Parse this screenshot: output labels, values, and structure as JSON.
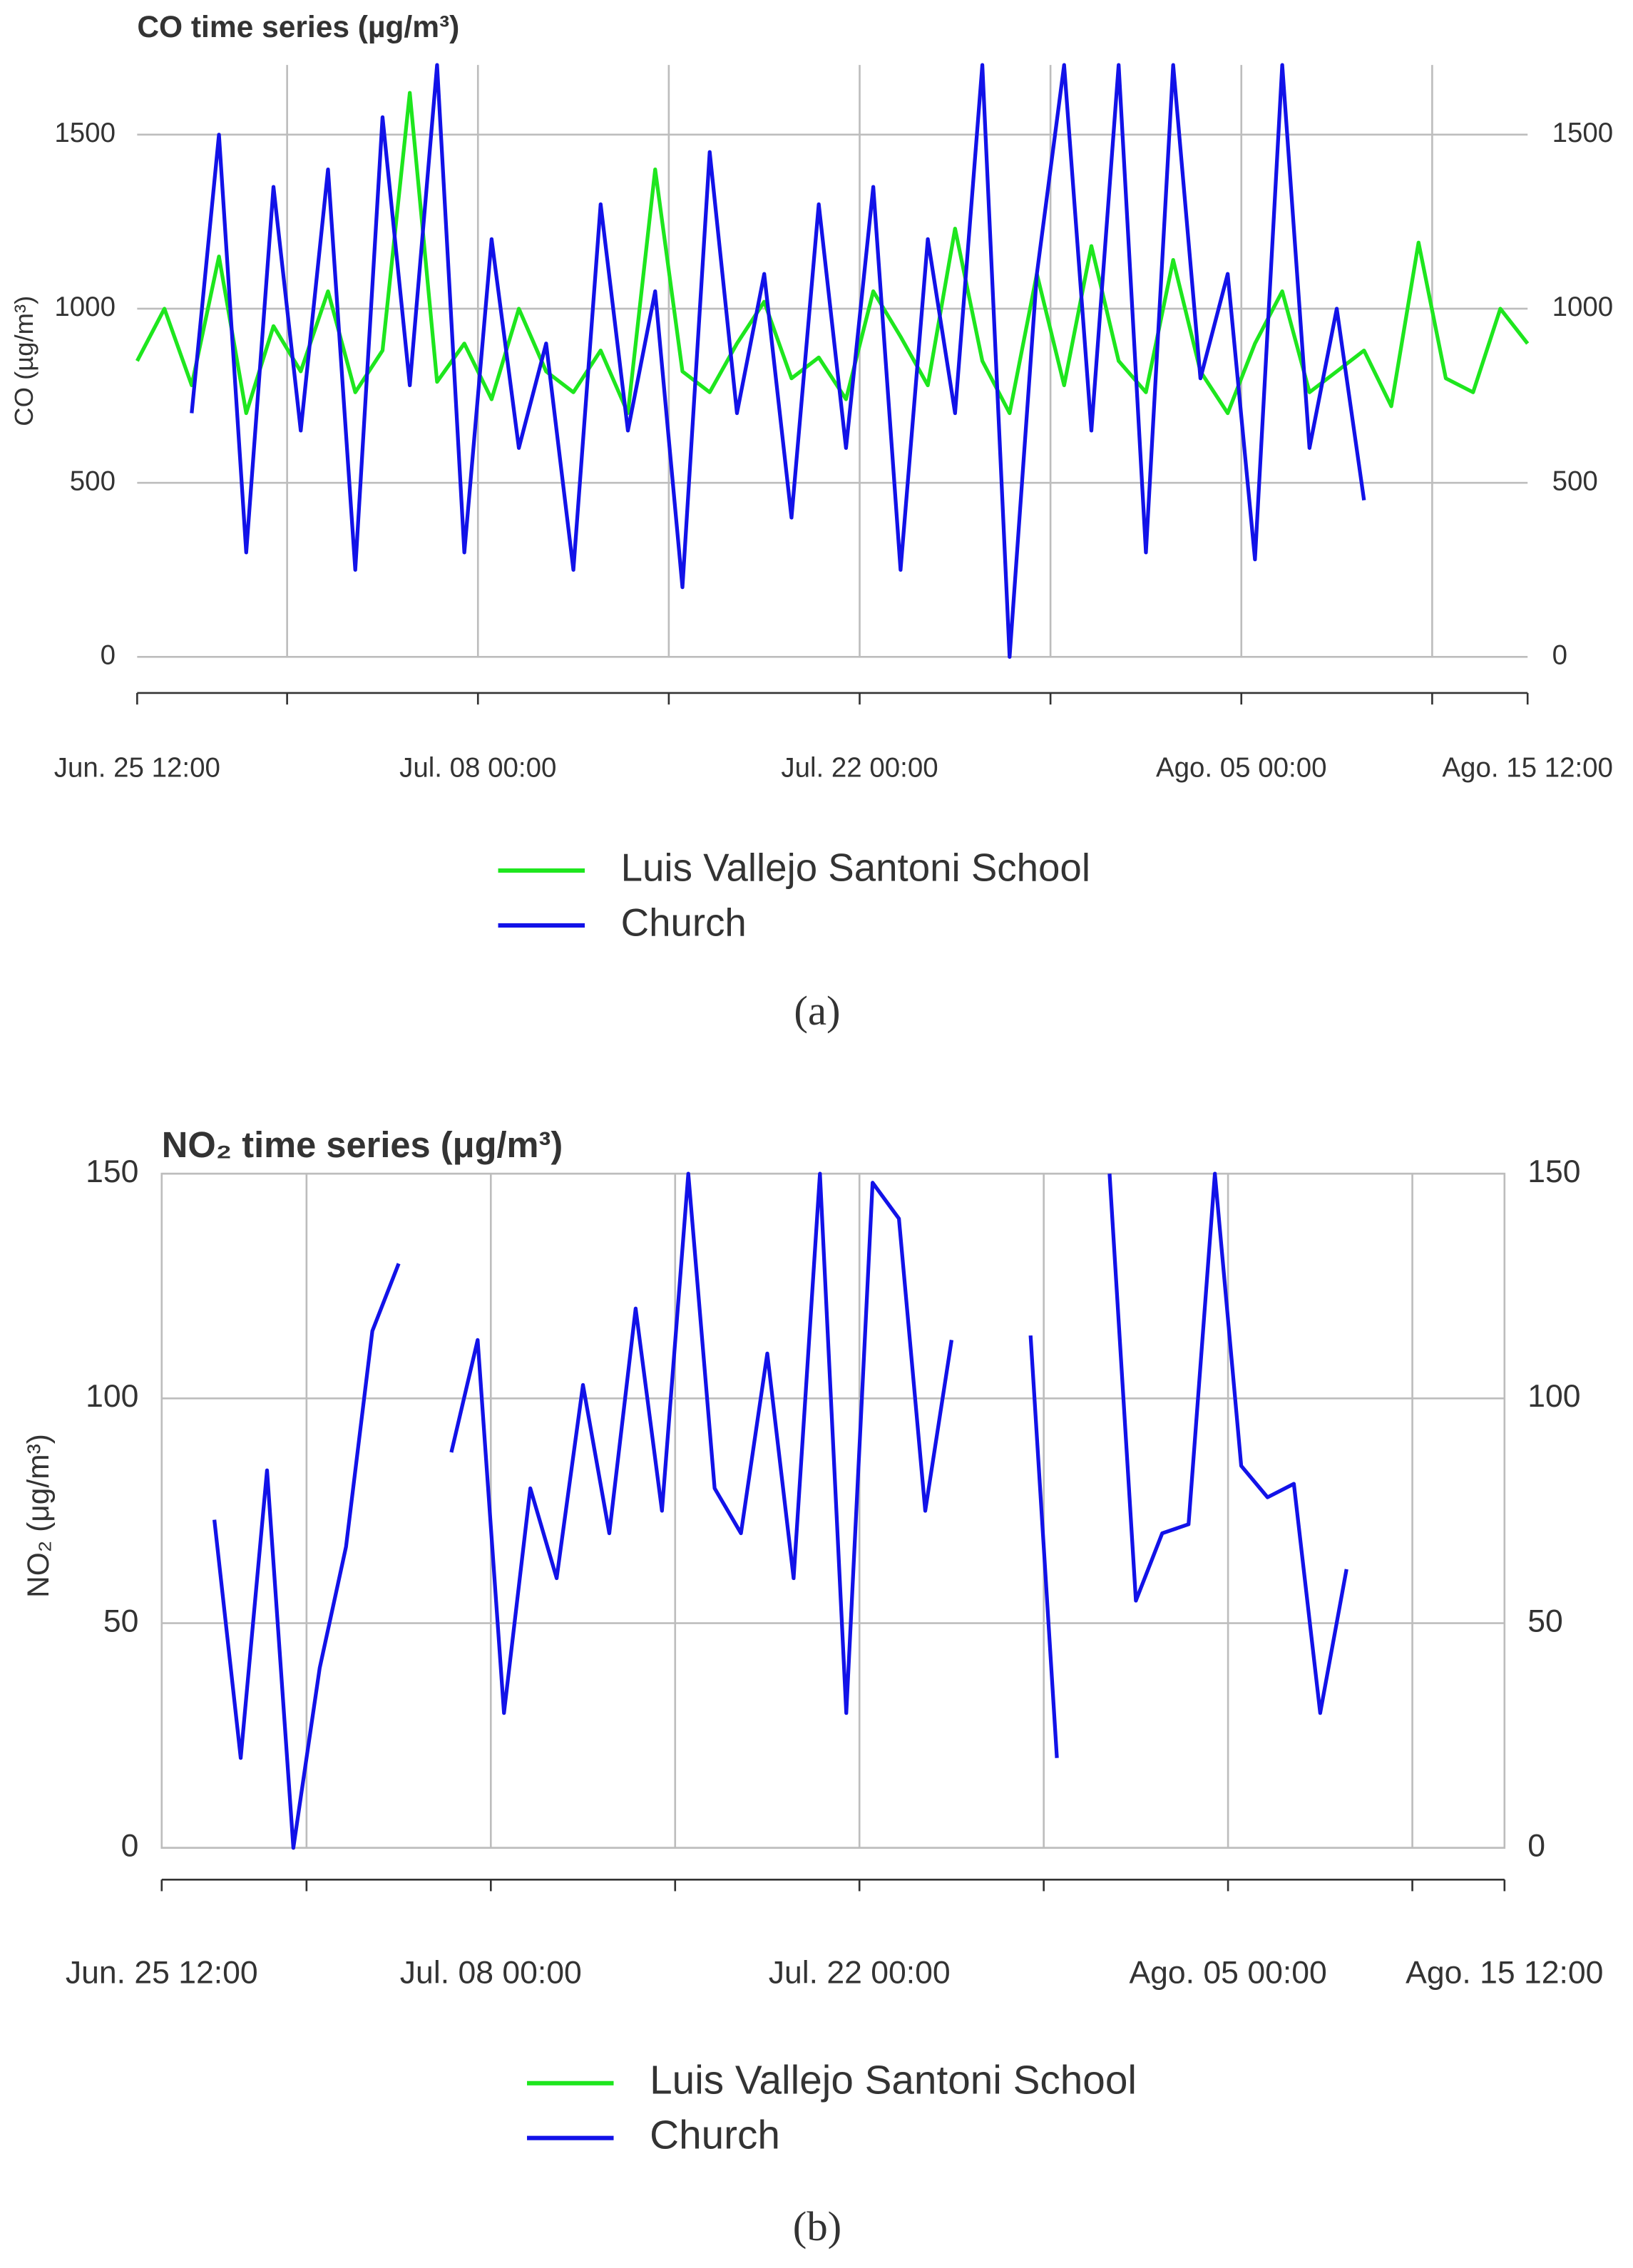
{
  "chart_data": [
    {
      "type": "line",
      "title": "CO time series (µg/m³)",
      "y_label": "CO (µg/m³)",
      "caption": "(a)",
      "grid": true,
      "mirror_y_axis": true,
      "frame": false,
      "x": [
        "06-25 12:00",
        "06-26 12:00",
        "06-27 12:00",
        "06-28 12:00",
        "06-29 12:00",
        "06-30 12:00",
        "07-01 12:00",
        "07-02 12:00",
        "07-03 12:00",
        "07-04 12:00",
        "07-05 12:00",
        "07-06 12:00",
        "07-07 12:00",
        "07-08 12:00",
        "07-09 12:00",
        "07-10 12:00",
        "07-11 12:00",
        "07-12 12:00",
        "07-13 12:00",
        "07-14 12:00",
        "07-15 12:00",
        "07-16 12:00",
        "07-17 12:00",
        "07-18 12:00",
        "07-19 12:00",
        "07-20 12:00",
        "07-21 12:00",
        "07-22 12:00",
        "07-23 12:00",
        "07-24 12:00",
        "07-25 12:00",
        "07-26 12:00",
        "07-27 12:00",
        "07-28 12:00",
        "07-29 12:00",
        "07-30 12:00",
        "07-31 12:00",
        "08-01 12:00",
        "08-02 12:00",
        "08-03 12:00",
        "08-04 12:00",
        "08-05 12:00",
        "08-06 12:00",
        "08-07 12:00",
        "08-08 12:00",
        "08-09 12:00",
        "08-10 12:00",
        "08-11 12:00",
        "08-12 12:00",
        "08-13 12:00",
        "08-14 12:00",
        "08-15 12:00"
      ],
      "xlim": [
        "06-25 12:00",
        "08-15 12:00"
      ],
      "xticks": [
        {
          "value": "06-25 12:00",
          "label": "Jun. 25 12:00"
        },
        {
          "value": "07-01 00:00",
          "label": null
        },
        {
          "value": "07-08 00:00",
          "label": "Jul. 08 00:00"
        },
        {
          "value": "07-15 00:00",
          "label": null
        },
        {
          "value": "07-22 00:00",
          "label": "Jul. 22 00:00"
        },
        {
          "value": "07-29 00:00",
          "label": null
        },
        {
          "value": "08-05 00:00",
          "label": "Ago. 05 00:00"
        },
        {
          "value": "08-12 00:00",
          "label": null
        },
        {
          "value": "08-15 12:00",
          "label": "Ago. 15 12:00"
        }
      ],
      "ylim": [
        0,
        1700
      ],
      "yticks": [
        0,
        500,
        1000,
        1500
      ],
      "series": [
        {
          "name": "Luis Vallejo Santoni School",
          "color": "#1ee61e",
          "values": [
            850,
            1000,
            780,
            1150,
            700,
            950,
            820,
            1050,
            760,
            880,
            1620,
            790,
            900,
            740,
            1000,
            820,
            760,
            880,
            700,
            1400,
            820,
            760,
            900,
            1020,
            800,
            860,
            740,
            1050,
            920,
            780,
            1230,
            850,
            700,
            1100,
            780,
            1180,
            850,
            760,
            1140,
            820,
            700,
            900,
            1050,
            760,
            820,
            880,
            720,
            1190,
            800,
            760,
            1000,
            900
          ]
        },
        {
          "name": "Church",
          "color": "#1212e8",
          "values": [
            null,
            null,
            700,
            1500,
            300,
            1350,
            650,
            1400,
            250,
            1550,
            780,
            1700,
            300,
            1200,
            600,
            900,
            250,
            1300,
            650,
            1050,
            200,
            1450,
            700,
            1100,
            400,
            1300,
            600,
            1350,
            250,
            1200,
            700,
            1700,
            0,
            1100,
            1700,
            650,
            1700,
            300,
            1700,
            800,
            1100,
            280,
            1700,
            600,
            1000,
            450,
            null,
            null,
            null,
            null,
            null,
            null
          ]
        }
      ]
    },
    {
      "type": "line",
      "title": "NO₂ time series (μg/m³)",
      "y_label": "NO₂ (μg/m³)",
      "caption": "(b)",
      "grid": true,
      "mirror_y_axis": true,
      "frame": true,
      "x": [
        "06-25 12:00",
        "06-26 12:00",
        "06-27 12:00",
        "06-28 12:00",
        "06-29 12:00",
        "06-30 12:00",
        "07-01 12:00",
        "07-02 12:00",
        "07-03 12:00",
        "07-04 12:00",
        "07-05 12:00",
        "07-06 12:00",
        "07-07 12:00",
        "07-08 12:00",
        "07-09 12:00",
        "07-10 12:00",
        "07-11 12:00",
        "07-12 12:00",
        "07-13 12:00",
        "07-14 12:00",
        "07-15 12:00",
        "07-16 12:00",
        "07-17 12:00",
        "07-18 12:00",
        "07-19 12:00",
        "07-20 12:00",
        "07-21 12:00",
        "07-22 12:00",
        "07-23 12:00",
        "07-24 12:00",
        "07-25 12:00",
        "07-26 12:00",
        "07-27 12:00",
        "07-28 12:00",
        "07-29 12:00",
        "07-30 12:00",
        "07-31 12:00",
        "08-01 12:00",
        "08-02 12:00",
        "08-03 12:00",
        "08-04 12:00",
        "08-05 12:00",
        "08-06 12:00",
        "08-07 12:00",
        "08-08 12:00",
        "08-09 12:00",
        "08-10 12:00",
        "08-11 12:00",
        "08-12 12:00",
        "08-13 12:00",
        "08-14 12:00",
        "08-15 12:00"
      ],
      "xlim": [
        "06-25 12:00",
        "08-15 12:00"
      ],
      "xticks": [
        {
          "value": "06-25 12:00",
          "label": "Jun. 25 12:00"
        },
        {
          "value": "07-01 00:00",
          "label": null
        },
        {
          "value": "07-08 00:00",
          "label": "Jul. 08 00:00"
        },
        {
          "value": "07-15 00:00",
          "label": null
        },
        {
          "value": "07-22 00:00",
          "label": "Jul. 22 00:00"
        },
        {
          "value": "07-29 00:00",
          "label": null
        },
        {
          "value": "08-05 00:00",
          "label": "Ago. 05 00:00"
        },
        {
          "value": "08-12 00:00",
          "label": null
        },
        {
          "value": "08-15 12:00",
          "label": "Ago. 15 12:00"
        }
      ],
      "ylim": [
        0,
        150
      ],
      "yticks": [
        0,
        50,
        100,
        150
      ],
      "series": [
        {
          "name": "Luis Vallejo Santoni School",
          "color": "#1ee61e",
          "values": [
            null,
            null,
            null,
            null,
            null,
            null,
            null,
            null,
            null,
            null,
            null,
            null,
            null,
            null,
            null,
            null,
            null,
            null,
            null,
            null,
            null,
            null,
            null,
            null,
            null,
            null,
            null,
            null,
            null,
            null,
            null,
            null,
            null,
            null,
            null,
            null,
            null,
            null,
            null,
            null,
            null,
            null,
            null,
            null,
            null,
            null,
            null,
            null,
            null,
            null,
            null,
            null
          ]
        },
        {
          "name": "Church",
          "color": "#1212e8",
          "values": [
            null,
            null,
            73,
            20,
            84,
            0,
            40,
            67,
            115,
            130,
            null,
            88,
            113,
            30,
            80,
            60,
            103,
            70,
            120,
            75,
            150,
            80,
            70,
            110,
            60,
            150,
            30,
            148,
            140,
            75,
            113,
            null,
            null,
            114,
            20,
            null,
            150,
            55,
            70,
            72,
            150,
            85,
            78,
            81,
            30,
            62,
            null,
            null,
            null,
            null,
            null,
            null
          ]
        }
      ]
    }
  ]
}
